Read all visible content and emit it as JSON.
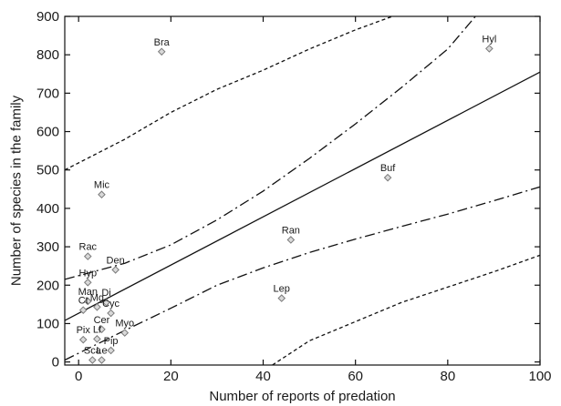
{
  "chart_data": {
    "type": "scatter",
    "xlabel": "Number of reports of predation",
    "ylabel": "Number of species in the family",
    "xlim": [
      -3,
      100
    ],
    "ylim": [
      -8,
      900
    ],
    "x_ticks": [
      0,
      20,
      40,
      60,
      80,
      100
    ],
    "y_ticks": [
      0,
      100,
      200,
      300,
      400,
      500,
      600,
      700,
      800,
      900
    ],
    "grid": false,
    "legend": "none",
    "points": [
      {
        "label": "Bra",
        "x": 18,
        "y": 808
      },
      {
        "label": "Hyl",
        "x": 89,
        "y": 816
      },
      {
        "label": "Buf",
        "x": 67,
        "y": 480
      },
      {
        "label": "Mic",
        "x": 5,
        "y": 436
      },
      {
        "label": "Ran",
        "x": 46,
        "y": 318
      },
      {
        "label": "Rac",
        "x": 2,
        "y": 275
      },
      {
        "label": "Den",
        "x": 8,
        "y": 240
      },
      {
        "label": "Hyp",
        "x": 2,
        "y": 207
      },
      {
        "label": "Lep",
        "x": 44,
        "y": 166
      },
      {
        "label": "Man",
        "x": 2,
        "y": 158
      },
      {
        "label": "Mg",
        "x": 4,
        "y": 143
      },
      {
        "label": "Di",
        "x": 6,
        "y": 155
      },
      {
        "label": "Ct",
        "x": 1,
        "y": 135
      },
      {
        "label": "Cyc",
        "x": 7,
        "y": 127
      },
      {
        "label": "Cer",
        "x": 5,
        "y": 85
      },
      {
        "label": "Myo",
        "x": 10,
        "y": 76
      },
      {
        "label": "Lf",
        "x": 4,
        "y": 60
      },
      {
        "label": "Pix",
        "x": 1,
        "y": 58
      },
      {
        "label": "Pip",
        "x": 7,
        "y": 30
      },
      {
        "label": "Sca",
        "x": 3,
        "y": 5
      },
      {
        "label": "Le",
        "x": 5,
        "y": 5
      }
    ],
    "regression": {
      "style": "solid",
      "x": [
        -3,
        100
      ],
      "y": [
        108,
        755
      ]
    },
    "confidence_band": {
      "style": "dash-dot",
      "upper": {
        "x": [
          -3,
          10,
          20,
          30,
          40,
          50,
          60,
          70,
          80,
          86
        ],
        "y": [
          215,
          257,
          305,
          370,
          445,
          530,
          620,
          715,
          815,
          900
        ]
      },
      "lower": {
        "x": [
          -3,
          10,
          20,
          30,
          40,
          50,
          60,
          70,
          80,
          90,
          100
        ],
        "y": [
          5,
          82,
          140,
          200,
          245,
          285,
          320,
          353,
          385,
          420,
          456
        ]
      }
    },
    "prediction_band": {
      "style": "dashed",
      "upper": {
        "x": [
          -3,
          10,
          20,
          30,
          40,
          50,
          60,
          68
        ],
        "y": [
          500,
          580,
          650,
          710,
          760,
          815,
          865,
          900
        ]
      },
      "lower": {
        "x": [
          42,
          50,
          60,
          70,
          80,
          90,
          100
        ],
        "y": [
          -8,
          55,
          105,
          155,
          195,
          235,
          278
        ]
      }
    }
  }
}
